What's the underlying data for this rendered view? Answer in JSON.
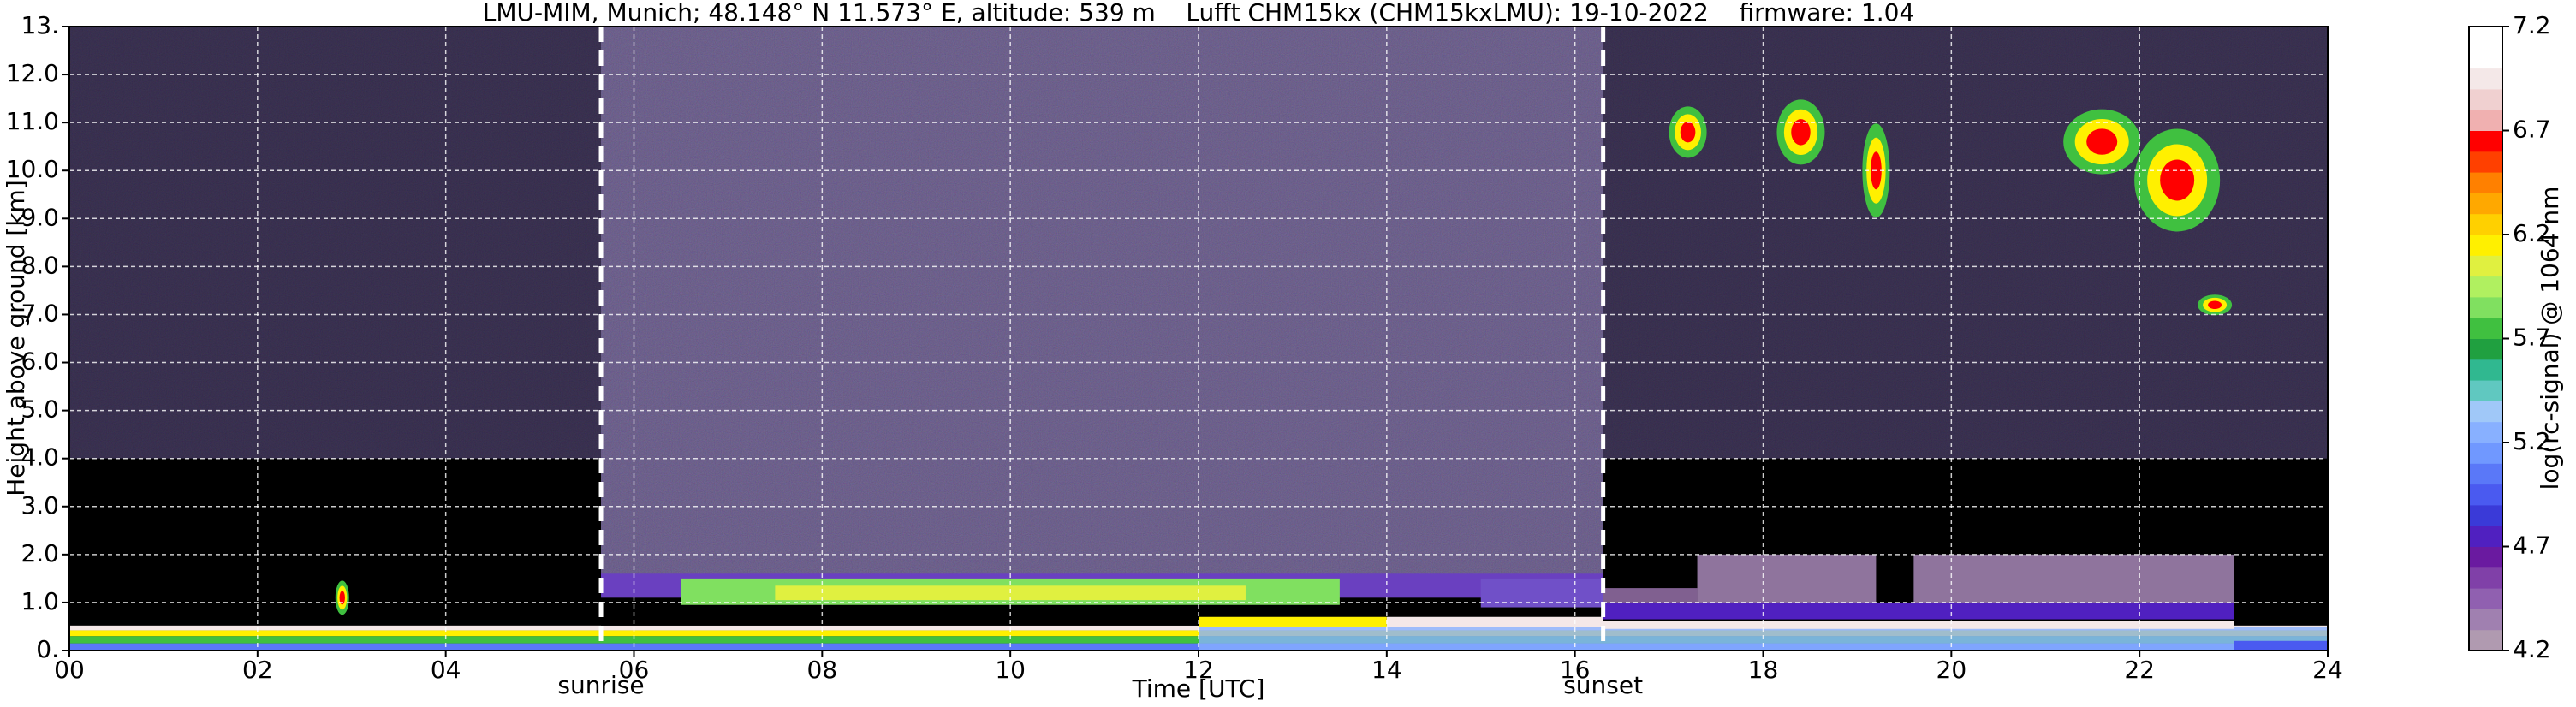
{
  "chart_data": {
    "type": "heatmap",
    "title": "LMU-MIM, Munich; 48.148° N 11.573° E, altitude: 539 m    Lufft CHM15kx (CHM15kxLMU): 19-10-2022    firmware: 1.04",
    "x_label": "Time [UTC]",
    "y_label": "Height above ground [km]",
    "xlim": [
      0,
      24
    ],
    "xticks": [
      {
        "value": 0,
        "label": "00"
      },
      {
        "value": 2,
        "label": "02"
      },
      {
        "value": 4,
        "label": "04"
      },
      {
        "value": 6,
        "label": "06"
      },
      {
        "value": 8,
        "label": "08"
      },
      {
        "value": 10,
        "label": "10"
      },
      {
        "value": 12,
        "label": "12"
      },
      {
        "value": 14,
        "label": "14"
      },
      {
        "value": 16,
        "label": "16"
      },
      {
        "value": 18,
        "label": "18"
      },
      {
        "value": 20,
        "label": "20"
      },
      {
        "value": 22,
        "label": "22"
      },
      {
        "value": 24,
        "label": "24"
      }
    ],
    "ylim": [
      0,
      13
    ],
    "yticks": [
      {
        "value": 0,
        "label": "0."
      },
      {
        "value": 1,
        "label": "1.0"
      },
      {
        "value": 2,
        "label": "2.0"
      },
      {
        "value": 3,
        "label": "3.0"
      },
      {
        "value": 4,
        "label": "4.0"
      },
      {
        "value": 5,
        "label": "5.0"
      },
      {
        "value": 6,
        "label": "6.0"
      },
      {
        "value": 7,
        "label": "7.0"
      },
      {
        "value": 8,
        "label": "8.0"
      },
      {
        "value": 9,
        "label": "9.0"
      },
      {
        "value": 10,
        "label": "10.0"
      },
      {
        "value": 11,
        "label": "11.0"
      },
      {
        "value": 12,
        "label": "12.0"
      },
      {
        "value": 13,
        "label": "13."
      }
    ],
    "grid": true,
    "annotations": [
      {
        "text": "sunrise",
        "x": 5.65
      },
      {
        "text": "sunset",
        "x": 16.3
      }
    ],
    "colorbar": {
      "label": "log(rc-signal) @ 1064 nm",
      "lim": [
        4.2,
        7.2
      ],
      "ticks": [
        4.2,
        4.7,
        5.2,
        5.7,
        6.2,
        6.7,
        7.2
      ],
      "colors": [
        "#b09ab0",
        "#a080b0",
        "#9060b0",
        "#8040a8",
        "#6a1aa0",
        "#5020c0",
        "#3a3ad8",
        "#4a5af0",
        "#5a78f8",
        "#7098ff",
        "#88b0ff",
        "#a0c8f8",
        "#60c8c0",
        "#30b890",
        "#20a040",
        "#40c040",
        "#80e060",
        "#b0f060",
        "#e0f040",
        "#fff000",
        "#ffd000",
        "#ffa800",
        "#ff8000",
        "#ff4000",
        "#ff0000",
        "#f0b0b0",
        "#f0d0d0",
        "#f4e8e8",
        "#ffffff",
        "#ffffff"
      ]
    }
  }
}
